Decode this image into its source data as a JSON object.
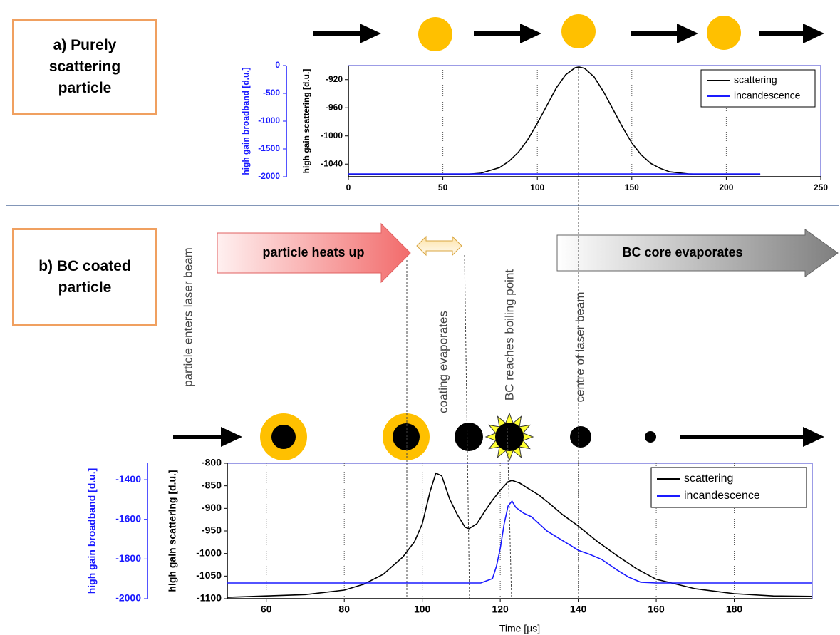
{
  "chart_data": [
    {
      "type": "line",
      "title": "a) Purely scattering particle",
      "ylabel": "high gain scattering [d.u.]",
      "y2label": "high gain broadband [d.u.]",
      "xlim": [
        0,
        250
      ],
      "xticks": [
        0,
        50,
        100,
        150,
        200,
        250
      ],
      "ylim": [
        -1058,
        -900
      ],
      "yticks": [
        -920,
        -960,
        -1000,
        -1040
      ],
      "y2lim": [
        -2000,
        0
      ],
      "y2ticks": [
        0,
        -500,
        -1000,
        -1500,
        -2000
      ],
      "grid": "x",
      "legend": "upper right",
      "series": [
        {
          "name": "scattering",
          "color": "#000000",
          "x": [
            0,
            10,
            20,
            30,
            40,
            50,
            60,
            70,
            80,
            85,
            90,
            95,
            100,
            105,
            110,
            115,
            120,
            122,
            125,
            130,
            135,
            140,
            145,
            150,
            155,
            160,
            165,
            170,
            180,
            190,
            200,
            210,
            218
          ],
          "values": [
            -1055,
            -1055,
            -1055,
            -1055,
            -1055,
            -1055,
            -1055,
            -1053,
            -1045,
            -1036,
            -1023,
            -1005,
            -982,
            -957,
            -932,
            -913,
            -903,
            -902,
            -904,
            -916,
            -937,
            -962,
            -987,
            -1010,
            -1027,
            -1039,
            -1046,
            -1051,
            -1054,
            -1055,
            -1055,
            -1055,
            -1055
          ]
        },
        {
          "name": "incandescence",
          "color": "#1a1aff",
          "axis": "y2",
          "x": [
            0,
            50,
            100,
            150,
            200,
            218
          ],
          "values": [
            -1950,
            -1950,
            -1950,
            -1950,
            -1950,
            -1950
          ]
        }
      ]
    },
    {
      "type": "line",
      "title": "b) BC coated particle",
      "xlabel": "Time [µs]",
      "ylabel": "high gain scattering [d.u.]",
      "y2label": "high gain broadband [d.u.]",
      "annotations": [
        "particle heats up",
        "BC core evaporates",
        "particle enters laser beam",
        "coating evaporates",
        "BC reaches boiling point",
        "centre of laser beam"
      ],
      "xlim": [
        50,
        200
      ],
      "xticks": [
        60,
        80,
        100,
        120,
        140,
        160,
        180
      ],
      "ylim": [
        -1100,
        -800
      ],
      "yticks": [
        -800,
        -850,
        -900,
        -950,
        -1000,
        -1050,
        -1100
      ],
      "y2lim": [
        -2000,
        -1317
      ],
      "y2ticks": [
        -1400,
        -1600,
        -1800,
        -2000
      ],
      "grid": "x",
      "legend": "upper right",
      "series": [
        {
          "name": "scattering",
          "color": "#000000",
          "x": [
            50,
            60,
            70,
            80,
            85,
            90,
            95,
            98,
            100,
            102,
            103.5,
            105,
            107,
            109,
            111,
            112,
            114,
            116,
            118,
            120,
            122,
            123,
            125,
            127,
            130,
            133,
            136,
            140,
            145,
            150,
            155,
            160,
            170,
            180,
            190,
            200
          ],
          "values": [
            -1097,
            -1094,
            -1091,
            -1081,
            -1068,
            -1046,
            -1008,
            -974,
            -934,
            -863,
            -822,
            -828,
            -879,
            -914,
            -942,
            -945,
            -934,
            -907,
            -882,
            -860,
            -841,
            -838,
            -844,
            -855,
            -871,
            -892,
            -914,
            -939,
            -974,
            -1005,
            -1034,
            -1057,
            -1078,
            -1089,
            -1094,
            -1095
          ]
        },
        {
          "name": "incandescence",
          "color": "#1a1aff",
          "axis": "y2",
          "x": [
            50,
            115,
            118,
            119,
            120,
            121,
            122,
            123,
            124,
            126,
            128,
            130,
            132,
            135,
            138,
            140,
            143,
            146,
            150,
            153,
            156,
            160,
            200
          ],
          "values": [
            -1921,
            -1921,
            -1899,
            -1838,
            -1748,
            -1623,
            -1533,
            -1508,
            -1540,
            -1569,
            -1587,
            -1623,
            -1659,
            -1695,
            -1731,
            -1756,
            -1777,
            -1802,
            -1856,
            -1892,
            -1917,
            -1921,
            -1921
          ]
        }
      ]
    }
  ]
}
